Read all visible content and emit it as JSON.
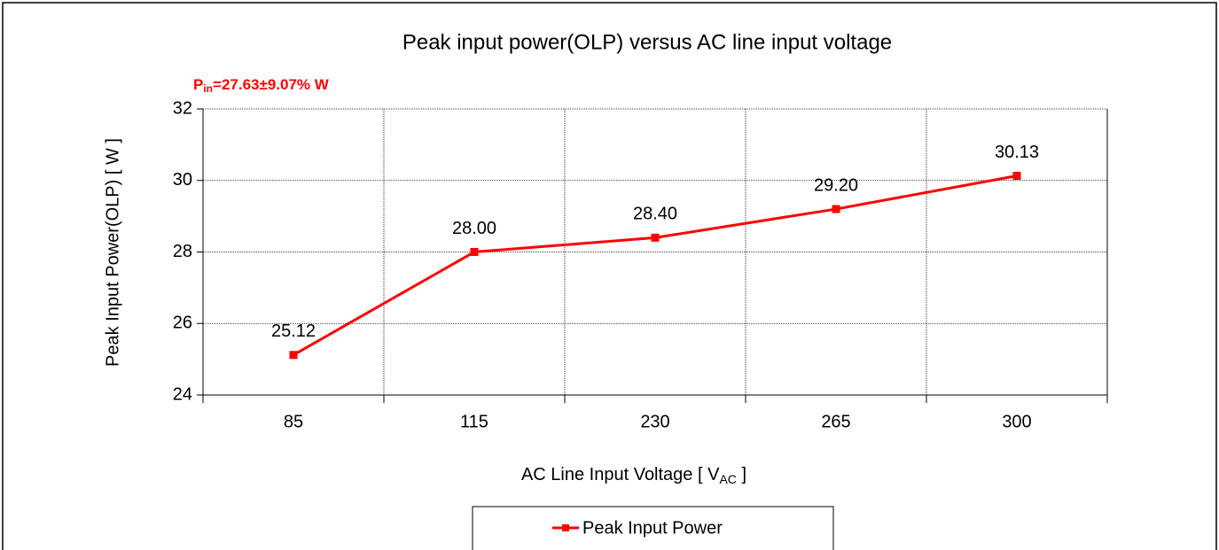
{
  "chart_data": {
    "type": "line",
    "title": "Peak input power(OLP) versus AC line input voltage",
    "annotation": {
      "main": "P",
      "sub": "in",
      "rest": "=27.63±9.07% W"
    },
    "y_label": "Peak Input Power(OLP) [ W ]",
    "x_label": {
      "main": "AC Line Input Voltage [ V",
      "sub": "AC",
      "rest": " ]"
    },
    "categories": [
      "85",
      "115",
      "230",
      "265",
      "300"
    ],
    "series": [
      {
        "name": "Peak Input Power",
        "color": "#ff0000",
        "values": [
          25.12,
          28,
          28.4,
          29.2,
          30.13
        ],
        "value_labels": [
          "25.12",
          "28.00",
          "28.40",
          "29.20",
          "30.13"
        ]
      }
    ],
    "ylim": [
      24,
      32
    ],
    "yticks": [
      24,
      26,
      28,
      30,
      32
    ],
    "grid": true,
    "legend": "bottom"
  }
}
